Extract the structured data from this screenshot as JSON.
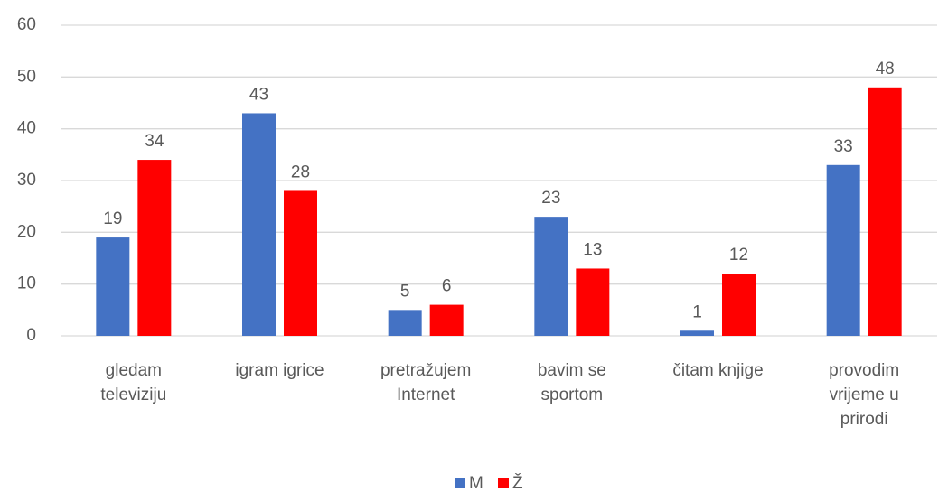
{
  "chart_data": {
    "type": "bar",
    "categories": [
      "gledam televiziju",
      "igram igrice",
      "pretražujem Internet",
      "bavim se sportom",
      "čitam knjige",
      "provodim vrijeme u prirodi"
    ],
    "series": [
      {
        "name": "M",
        "color": "#4472c4",
        "values": [
          19,
          43,
          5,
          23,
          1,
          33
        ]
      },
      {
        "name": "Ž",
        "color": "#ff0000",
        "values": [
          34,
          28,
          6,
          13,
          12,
          48
        ]
      }
    ],
    "ylim": [
      0,
      60
    ],
    "yticks": [
      0,
      10,
      20,
      30,
      40,
      50,
      60
    ],
    "grid": true,
    "legend": "bottom"
  }
}
